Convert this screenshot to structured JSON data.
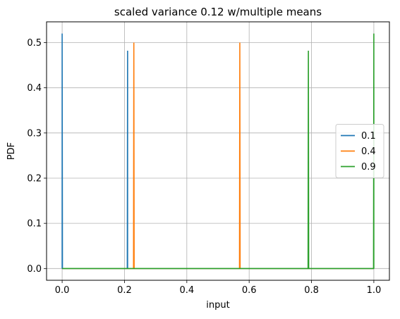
{
  "chart_data": {
    "type": "line",
    "title": "scaled variance 0.12 w/multiple means",
    "xlabel": "input",
    "ylabel": "PDF",
    "xlim": [
      -0.05,
      1.05
    ],
    "ylim": [
      -0.026,
      0.546
    ],
    "xticks": [
      0.0,
      0.2,
      0.4,
      0.6,
      0.8,
      1.0
    ],
    "xtick_labels": [
      "0.0",
      "0.2",
      "0.4",
      "0.6",
      "0.8",
      "1.0"
    ],
    "yticks": [
      0.0,
      0.1,
      0.2,
      0.3,
      0.4,
      0.5
    ],
    "ytick_labels": [
      "0.0",
      "0.1",
      "0.2",
      "0.3",
      "0.4",
      "0.5"
    ],
    "grid": true,
    "legend_position": "center-right",
    "series": [
      {
        "name": "0.1",
        "color": "#1f77b4",
        "x": [
          0.0,
          0.0,
          0.001,
          0.209,
          0.21,
          0.21,
          1.0
        ],
        "y": [
          0.0,
          0.52,
          0.0,
          0.0,
          0.482,
          0.0,
          0.0
        ]
      },
      {
        "name": "0.4",
        "color": "#ff7f0e",
        "x": [
          0.0,
          0.229,
          0.23,
          0.231,
          0.569,
          0.57,
          0.571,
          1.0
        ],
        "y": [
          0.0,
          0.0,
          0.5,
          0.0,
          0.0,
          0.5,
          0.0,
          0.0
        ]
      },
      {
        "name": "0.9",
        "color": "#2ca02c",
        "x": [
          0.0,
          0.789,
          0.79,
          0.791,
          0.999,
          1.0,
          1.0
        ],
        "y": [
          0.0,
          0.0,
          0.482,
          0.0,
          0.0,
          0.52,
          0.0
        ]
      }
    ]
  }
}
